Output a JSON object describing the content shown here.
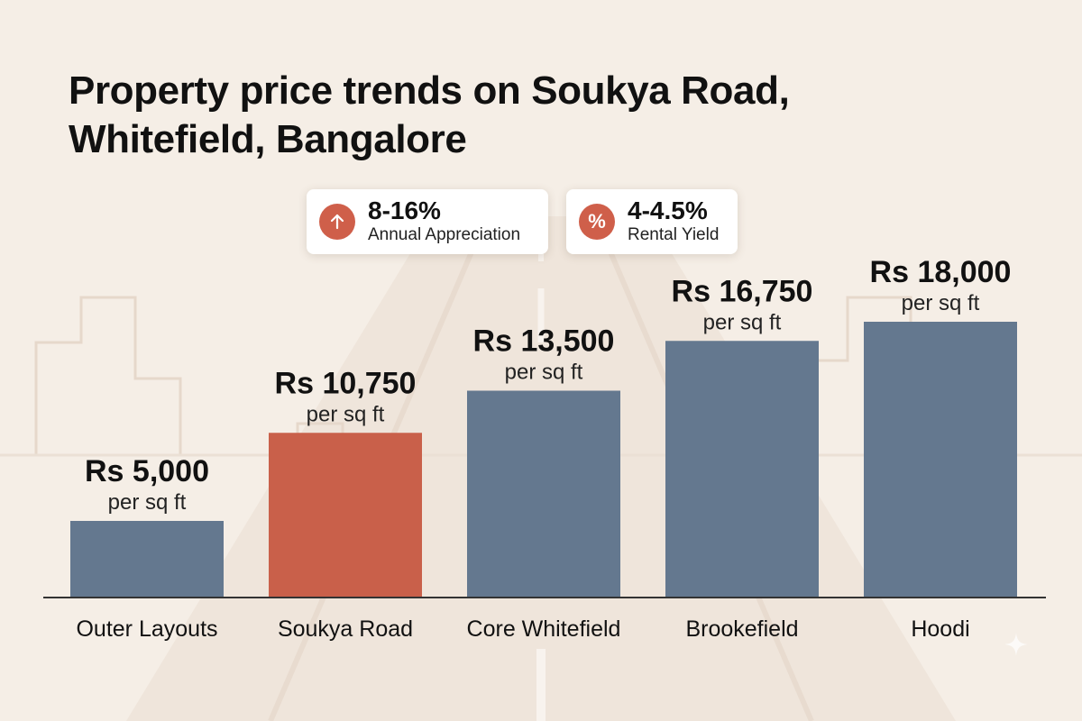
{
  "title": "Property price trends on Soukya Road, Whitefield, Bangalore",
  "badges": [
    {
      "value": "8-16%",
      "label": "Annual Appreciation",
      "icon": "arrow-up-icon"
    },
    {
      "value": "4-4.5%",
      "label": "Rental Yield",
      "icon": "percent-icon"
    }
  ],
  "colors": {
    "bar": "#64788f",
    "highlight": "#c9604a",
    "accent": "#cf5f4a",
    "background": "#f5eee6",
    "axis": "#333333"
  },
  "chart_data": {
    "type": "bar",
    "title": "Property price trends on Soukya Road, Whitefield, Bangalore",
    "xlabel": "",
    "ylabel": "",
    "unit": "per sq ft",
    "categories": [
      "Outer Layouts",
      "Soukya Road",
      "Core Whitefield",
      "Brookefield",
      "Hoodi"
    ],
    "values": [
      5000,
      10750,
      13500,
      16750,
      18000
    ],
    "value_labels": [
      "Rs 5,000",
      "Rs 10,750",
      "Rs 13,500",
      "Rs 16,750",
      "Rs 18,000"
    ],
    "highlighted_category": "Soukya Road",
    "ylim": [
      0,
      18000
    ],
    "grid": false,
    "legend": "none"
  }
}
